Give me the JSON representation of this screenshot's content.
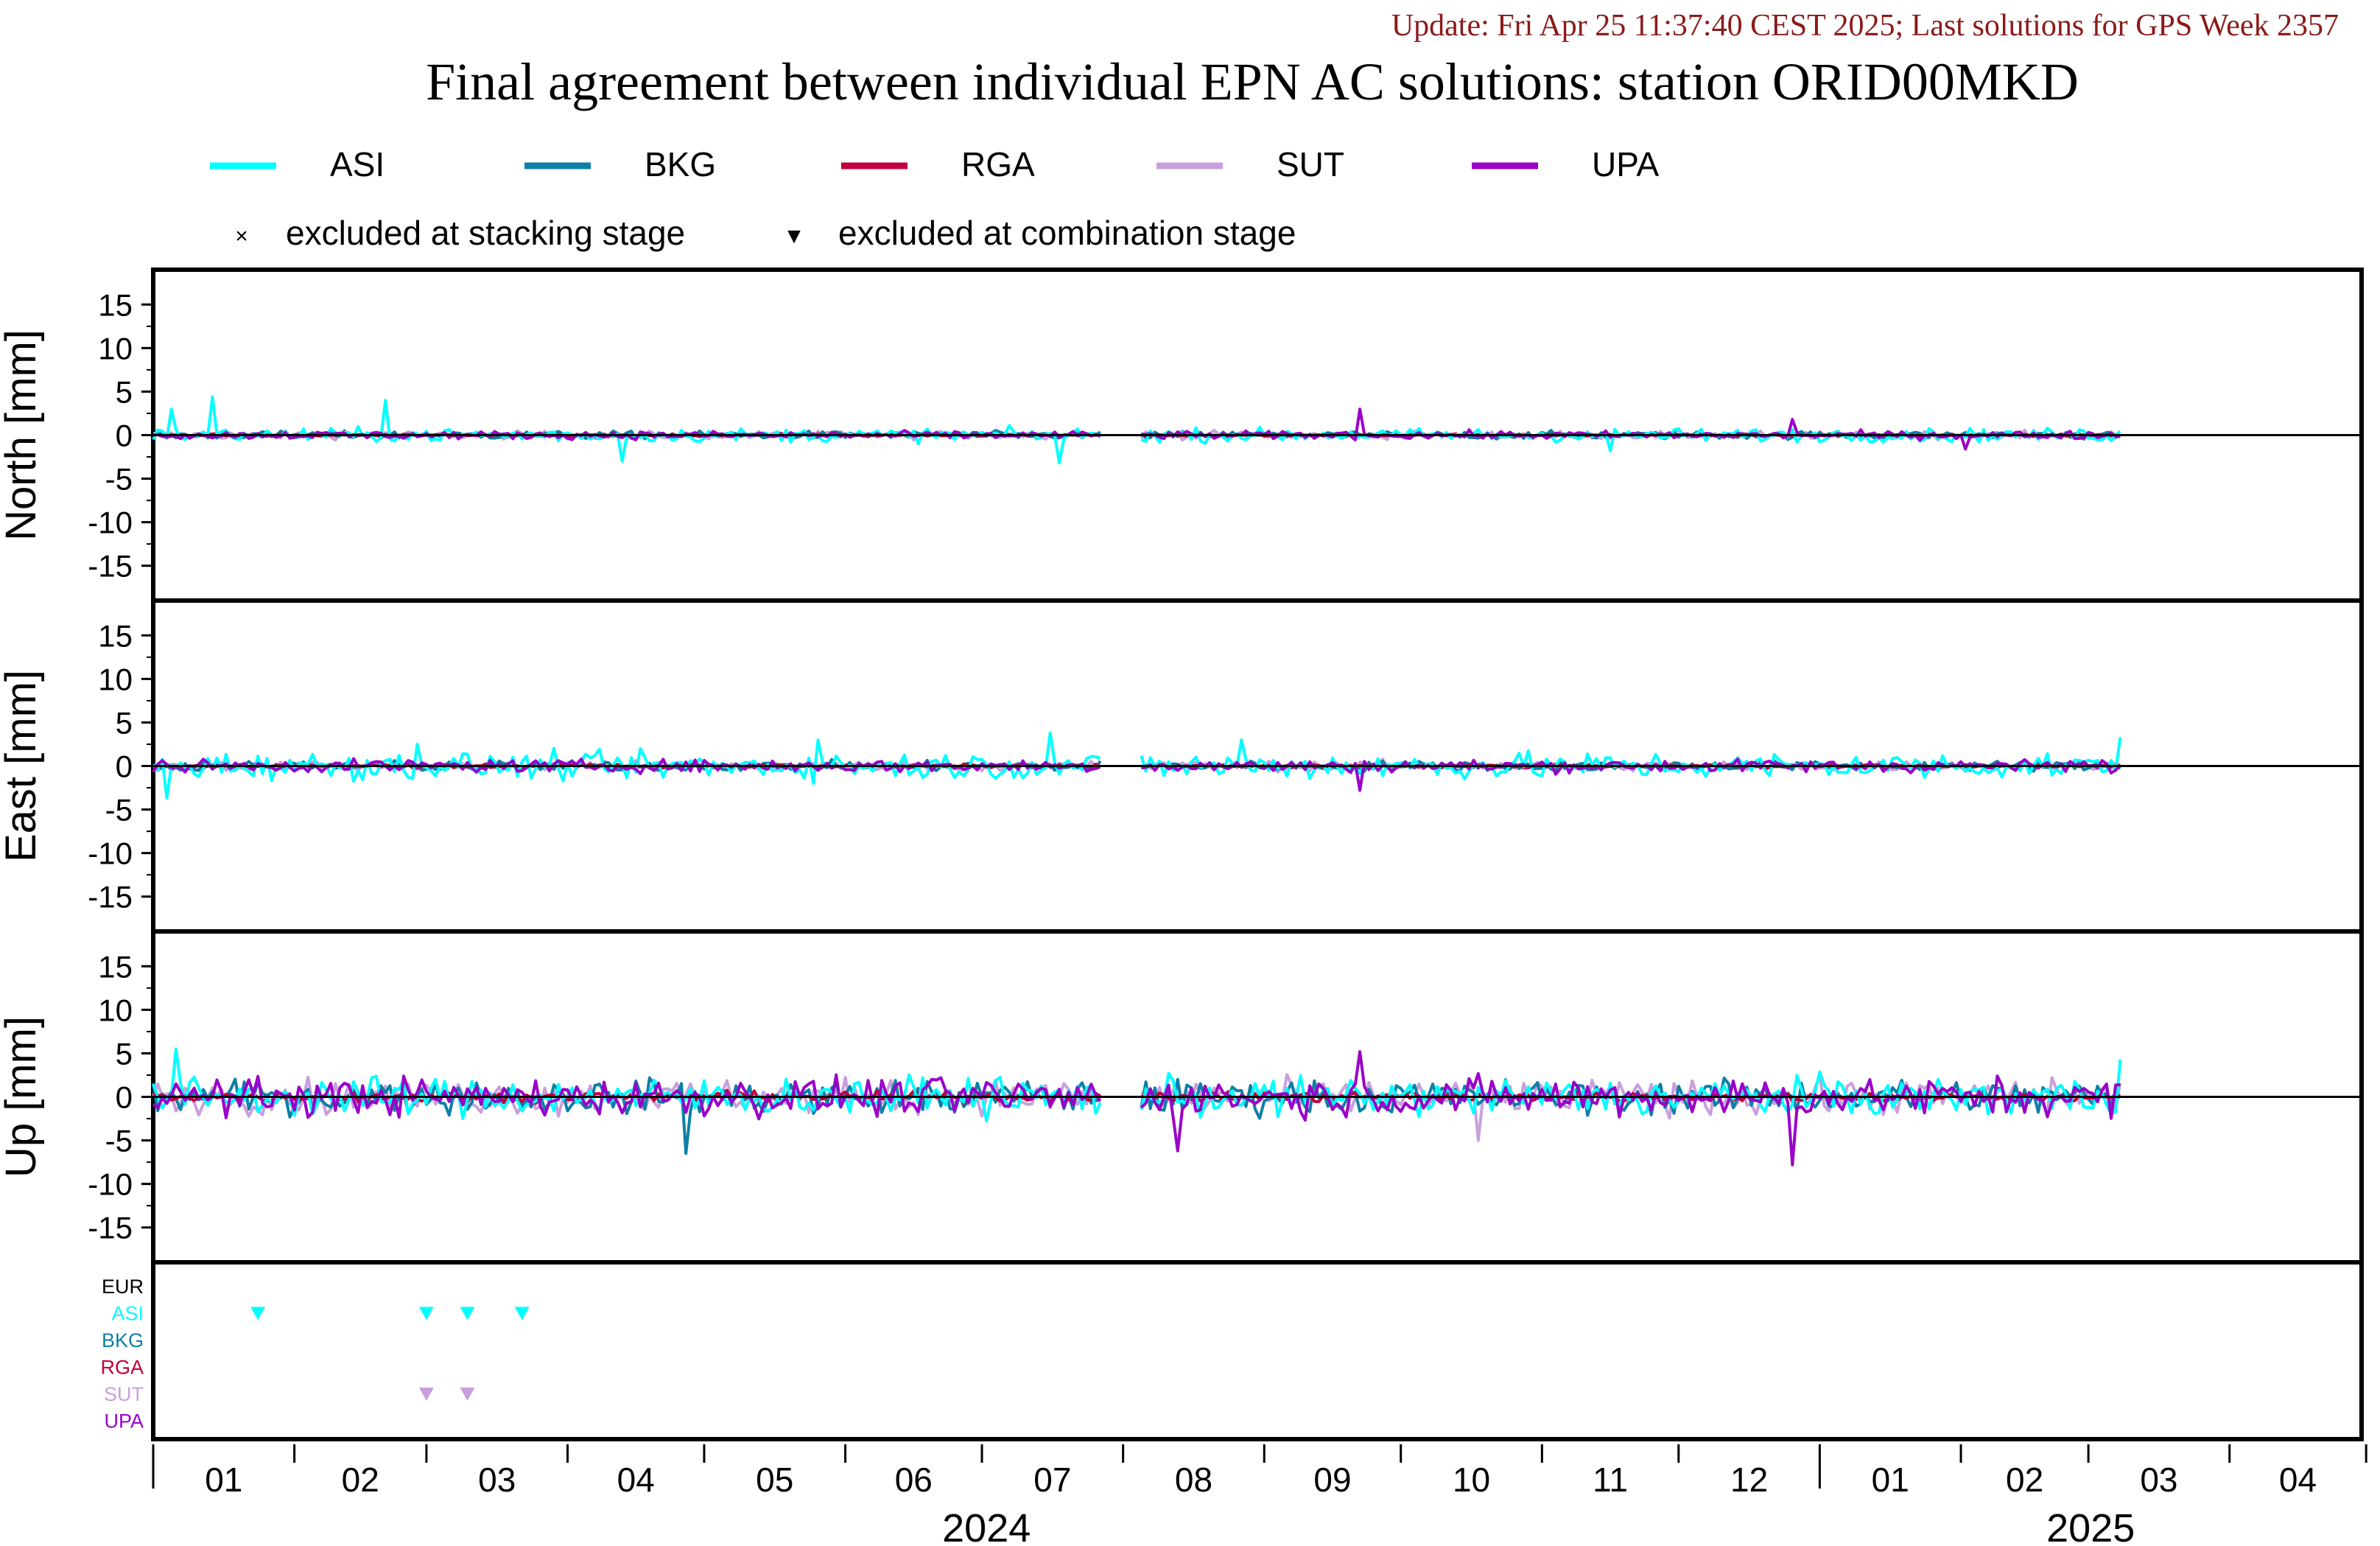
{
  "header": {
    "update_line": "Update: Fri Apr 25 11:37:40 CEST 2025; Last solutions for GPS Week 2357",
    "title": "Final agreement between individual EPN AC solutions: station ORID00MKD"
  },
  "legend": {
    "series": [
      {
        "name": "ASI",
        "color": "#00ffff"
      },
      {
        "name": "BKG",
        "color": "#0e7fa6"
      },
      {
        "name": "RGA",
        "color": "#c0003c"
      },
      {
        "name": "SUT",
        "color": "#c8a0dc"
      },
      {
        "name": "UPA",
        "color": "#9a00c8"
      }
    ],
    "markers": [
      {
        "symbol": "×",
        "label": "excluded at stacking stage"
      },
      {
        "symbol": "▼",
        "label": "excluded at combination stage"
      }
    ]
  },
  "chart_data": {
    "type": "line",
    "x_start": "2024-01-01",
    "x_end": "2025-04-30",
    "gaps": [
      [
        "2024-07-28",
        "2024-08-05"
      ]
    ],
    "data_end": "2025-03-08",
    "ylim": [
      -19,
      19
    ],
    "yticks": [
      15,
      10,
      5,
      0,
      -5,
      -10,
      -15
    ],
    "grid": false,
    "legend_placement": "top",
    "panels": [
      {
        "id": "north",
        "ylabel": "North [mm]",
        "amplitudes": {
          "ASI": 0.6,
          "BKG": 0.35,
          "RGA": 0.12,
          "SUT": 0.35,
          "UPA": 0.35
        },
        "spikes": [
          {
            "series": "ASI",
            "date": "2024-01-14",
            "value": 4.4
          },
          {
            "series": "ASI",
            "date": "2024-01-05",
            "value": 3.0
          },
          {
            "series": "ASI",
            "date": "2024-02-21",
            "value": 4.0
          },
          {
            "series": "ASI",
            "date": "2024-04-13",
            "value": -3.0
          },
          {
            "series": "ASI",
            "date": "2024-07-18",
            "value": -3.2
          },
          {
            "series": "UPA",
            "date": "2024-09-22",
            "value": 3.0
          },
          {
            "series": "ASI",
            "date": "2024-11-16",
            "value": -1.8
          },
          {
            "series": "UPA",
            "date": "2024-12-26",
            "value": 1.8
          },
          {
            "series": "UPA",
            "date": "2025-02-02",
            "value": -1.6
          }
        ]
      },
      {
        "id": "east",
        "ylabel": "East [mm]",
        "amplitudes": {
          "ASI": 1.2,
          "BKG": 0.45,
          "RGA": 0.15,
          "SUT": 0.45,
          "UPA": 0.55
        },
        "spikes": [
          {
            "series": "ASI",
            "date": "2024-01-04",
            "value": -3.7
          },
          {
            "series": "ASI",
            "date": "2024-02-28",
            "value": 2.5
          },
          {
            "series": "ASI",
            "date": "2024-05-26",
            "value": 3.0
          },
          {
            "series": "ASI",
            "date": "2024-07-16",
            "value": 3.8
          },
          {
            "series": "ASI",
            "date": "2024-08-27",
            "value": 3.0
          },
          {
            "series": "UPA",
            "date": "2024-09-22",
            "value": -2.8
          },
          {
            "series": "ASI",
            "date": "2025-03-08",
            "value": 3.3
          }
        ]
      },
      {
        "id": "up",
        "ylabel": "Up [mm]",
        "amplitudes": {
          "ASI": 1.7,
          "BKG": 1.5,
          "RGA": 0.45,
          "SUT": 1.5,
          "UPA": 1.7
        },
        "spikes": [
          {
            "series": "ASI",
            "date": "2024-01-06",
            "value": 5.5
          },
          {
            "series": "BKG",
            "date": "2024-04-27",
            "value": -6.5
          },
          {
            "series": "UPA",
            "date": "2024-08-13",
            "value": -6.2
          },
          {
            "series": "UPA",
            "date": "2024-09-22",
            "value": 5.2
          },
          {
            "series": "UPA",
            "date": "2024-12-26",
            "value": -7.8
          },
          {
            "series": "SUT",
            "date": "2024-10-18",
            "value": -5.0
          },
          {
            "series": "ASI",
            "date": "2025-03-08",
            "value": 4.3
          }
        ]
      }
    ],
    "exclusion_panel": {
      "rows": [
        {
          "label": "EUR",
          "color": "#000000"
        },
        {
          "label": "ASI",
          "color": "#00ffff"
        },
        {
          "label": "BKG",
          "color": "#0e7fa6"
        },
        {
          "label": "RGA",
          "color": "#c0003c"
        },
        {
          "label": "SUT",
          "color": "#c8a0dc"
        },
        {
          "label": "UPA",
          "color": "#9a00c8"
        }
      ],
      "markers": [
        {
          "row": "ASI",
          "date": "2024-01-24"
        },
        {
          "row": "ASI",
          "date": "2024-03-01"
        },
        {
          "row": "ASI",
          "date": "2024-03-10"
        },
        {
          "row": "ASI",
          "date": "2024-03-22"
        },
        {
          "row": "SUT",
          "date": "2024-03-01"
        },
        {
          "row": "SUT",
          "date": "2024-03-10"
        }
      ]
    },
    "x_axis": {
      "month_labels": [
        "01",
        "02",
        "03",
        "04",
        "05",
        "06",
        "07",
        "08",
        "09",
        "10",
        "11",
        "12",
        "01",
        "02",
        "03",
        "04"
      ],
      "years": [
        {
          "label": "2024"
        },
        {
          "label": "2025"
        }
      ]
    }
  }
}
